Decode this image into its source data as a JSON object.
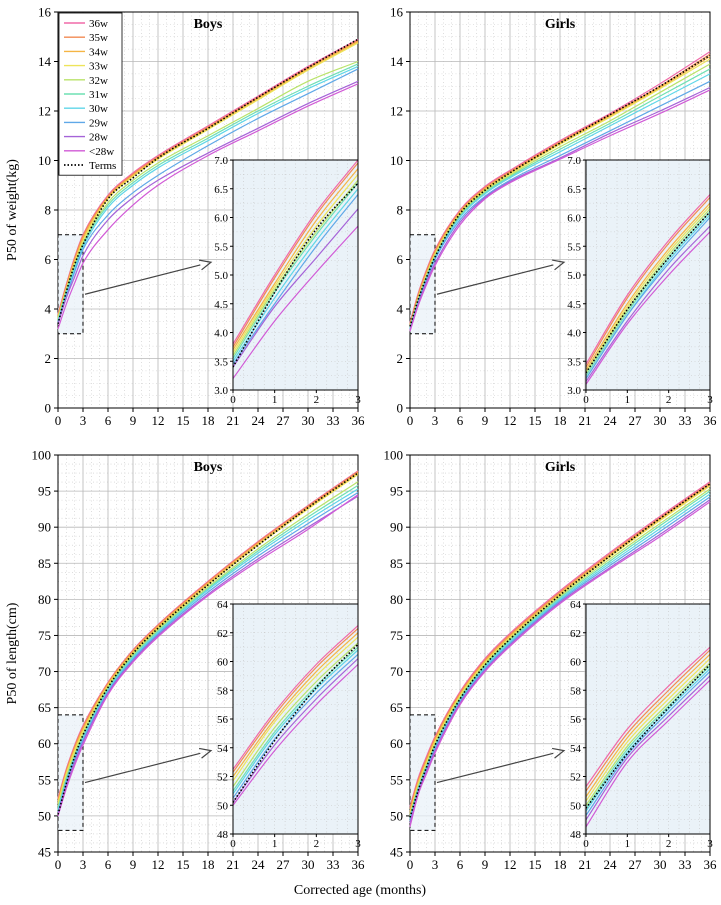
{
  "figure": {
    "xlabel": "Corrected age (months)"
  },
  "legend": {
    "entries": [
      {
        "label": "36w",
        "color": "#f06aa8",
        "style": "solid"
      },
      {
        "label": "35w",
        "color": "#f28a52",
        "style": "solid"
      },
      {
        "label": "34w",
        "color": "#f5b544",
        "style": "solid"
      },
      {
        "label": "33w",
        "color": "#eee45a",
        "style": "solid"
      },
      {
        "label": "32w",
        "color": "#b9e36a",
        "style": "solid"
      },
      {
        "label": "31w",
        "color": "#6fe0b4",
        "style": "solid"
      },
      {
        "label": "30w",
        "color": "#5fd6e8",
        "style": "solid"
      },
      {
        "label": "29w",
        "color": "#5fa8e8",
        "style": "solid"
      },
      {
        "label": "28w",
        "color": "#a563d8",
        "style": "solid"
      },
      {
        "label": "<28w",
        "color": "#d15ad6",
        "style": "solid"
      },
      {
        "label": "Terms",
        "color": "#000000",
        "style": "dotted"
      }
    ]
  },
  "chart_data": [
    {
      "type": "line",
      "title": "Boys",
      "ylabel": "P50 of weight(kg)",
      "xlabel": "Corrected age (months)",
      "xlim": [
        0,
        36
      ],
      "ylim": [
        0,
        16
      ],
      "xticks": [
        0,
        3,
        6,
        9,
        12,
        15,
        18,
        21,
        24,
        27,
        30,
        33,
        36
      ],
      "yticks": [
        0,
        2,
        4,
        6,
        8,
        10,
        12,
        14,
        16
      ],
      "highlight_box": {
        "x": [
          0,
          3
        ],
        "y": [
          3,
          7
        ]
      },
      "inset": {
        "xlim": [
          0,
          3
        ],
        "ylim": [
          3.0,
          7.0
        ],
        "xticks": [
          0,
          1,
          2,
          3
        ],
        "yticks": [
          "3.0",
          "3.5",
          "4.0",
          "4.5",
          "5.0",
          "5.5",
          "6.0",
          "6.5",
          "7.0"
        ]
      },
      "x": [
        0,
        1,
        2,
        3,
        6,
        9,
        12,
        18,
        24,
        30,
        36
      ],
      "series": [
        {
          "name": "36w",
          "values": [
            3.8,
            5.0,
            6.1,
            7.0,
            8.6,
            9.5,
            10.2,
            11.4,
            12.6,
            13.8,
            14.9
          ]
        },
        {
          "name": "35w",
          "values": [
            3.75,
            4.95,
            6.05,
            6.95,
            8.55,
            9.45,
            10.15,
            11.35,
            12.55,
            13.75,
            14.85
          ]
        },
        {
          "name": "34w",
          "values": [
            3.7,
            4.85,
            5.95,
            6.85,
            8.5,
            9.4,
            10.1,
            11.3,
            12.5,
            13.7,
            14.8
          ]
        },
        {
          "name": "33w",
          "values": [
            3.65,
            4.8,
            5.85,
            6.75,
            8.45,
            9.35,
            10.05,
            11.25,
            12.45,
            13.65,
            14.75
          ]
        },
        {
          "name": "32w",
          "values": [
            3.6,
            4.75,
            5.75,
            6.65,
            8.3,
            9.2,
            9.9,
            11.0,
            12.1,
            13.2,
            14.0
          ]
        },
        {
          "name": "31w",
          "values": [
            3.55,
            4.7,
            5.7,
            6.6,
            8.2,
            9.1,
            9.8,
            10.9,
            12.0,
            13.0,
            13.9
          ]
        },
        {
          "name": "30w",
          "values": [
            3.5,
            4.6,
            5.6,
            6.5,
            8.1,
            9.0,
            9.7,
            10.8,
            11.9,
            12.9,
            13.8
          ]
        },
        {
          "name": "29w",
          "values": [
            3.45,
            4.5,
            5.5,
            6.4,
            7.8,
            8.7,
            9.4,
            10.6,
            11.7,
            12.7,
            13.7
          ]
        },
        {
          "name": "28w",
          "values": [
            3.4,
            4.45,
            5.3,
            6.15,
            7.6,
            8.5,
            9.2,
            10.3,
            11.3,
            12.3,
            13.2
          ]
        },
        {
          "name": "<28w",
          "values": [
            3.2,
            4.2,
            5.05,
            5.85,
            7.2,
            8.2,
            9.0,
            10.2,
            11.2,
            12.2,
            13.1
          ]
        },
        {
          "name": "Terms",
          "values": [
            3.4,
            4.7,
            5.8,
            6.6,
            8.45,
            9.3,
            10.1,
            11.3,
            12.55,
            13.75,
            14.9
          ]
        }
      ]
    },
    {
      "type": "line",
      "title": "Girls",
      "ylabel": "",
      "xlabel": "Corrected age (months)",
      "xlim": [
        0,
        36
      ],
      "ylim": [
        0,
        16
      ],
      "xticks": [
        0,
        3,
        6,
        9,
        12,
        15,
        18,
        21,
        24,
        27,
        30,
        33,
        36
      ],
      "yticks": [
        0,
        2,
        4,
        6,
        8,
        10,
        12,
        14,
        16
      ],
      "highlight_box": {
        "x": [
          0,
          3
        ],
        "y": [
          3,
          7
        ]
      },
      "inset": {
        "xlim": [
          0,
          3
        ],
        "ylim": [
          3.0,
          7.0
        ],
        "xticks": [
          0,
          1,
          2,
          3
        ],
        "yticks": [
          "3.0",
          "3.5",
          "4.0",
          "4.5",
          "5.0",
          "5.5",
          "6.0",
          "6.5",
          "7.0"
        ]
      },
      "x": [
        0,
        1,
        2,
        3,
        6,
        9,
        12,
        18,
        24,
        30,
        36
      ],
      "series": [
        {
          "name": "36w",
          "values": [
            3.45,
            4.65,
            5.6,
            6.4,
            8.0,
            8.95,
            9.6,
            10.8,
            11.9,
            13.1,
            14.4
          ]
        },
        {
          "name": "35w",
          "values": [
            3.4,
            4.6,
            5.55,
            6.35,
            7.95,
            8.9,
            9.55,
            10.75,
            11.85,
            13.0,
            14.3
          ]
        },
        {
          "name": "34w",
          "values": [
            3.35,
            4.5,
            5.45,
            6.25,
            7.9,
            8.85,
            9.5,
            10.7,
            11.8,
            12.95,
            14.2
          ]
        },
        {
          "name": "33w",
          "values": [
            3.3,
            4.45,
            5.4,
            6.2,
            7.85,
            8.8,
            9.45,
            10.65,
            11.75,
            12.9,
            14.1
          ]
        },
        {
          "name": "32w",
          "values": [
            3.3,
            4.4,
            5.35,
            6.15,
            7.8,
            8.75,
            9.4,
            10.55,
            11.6,
            12.75,
            13.9
          ]
        },
        {
          "name": "31w",
          "values": [
            3.25,
            4.35,
            5.3,
            6.1,
            7.75,
            8.7,
            9.35,
            10.45,
            11.5,
            12.6,
            13.7
          ]
        },
        {
          "name": "30w",
          "values": [
            3.2,
            4.3,
            5.25,
            6.05,
            7.7,
            8.65,
            9.3,
            10.35,
            11.4,
            12.45,
            13.5
          ]
        },
        {
          "name": "29w",
          "values": [
            3.2,
            4.3,
            5.2,
            6.0,
            7.6,
            8.55,
            9.2,
            10.2,
            11.2,
            12.2,
            13.2
          ]
        },
        {
          "name": "28w",
          "values": [
            3.15,
            4.2,
            5.1,
            5.85,
            7.5,
            8.5,
            9.15,
            10.1,
            11.1,
            12.0,
            12.95
          ]
        },
        {
          "name": "<28w",
          "values": [
            3.1,
            4.15,
            5.0,
            5.75,
            7.4,
            8.45,
            9.1,
            10.05,
            11.0,
            11.9,
            12.85
          ]
        },
        {
          "name": "Terms",
          "values": [
            3.3,
            4.4,
            5.3,
            6.1,
            7.85,
            8.8,
            9.5,
            10.7,
            11.85,
            13.0,
            14.25
          ]
        }
      ]
    },
    {
      "type": "line",
      "title": "Boys",
      "ylabel": "P50 of length(cm)",
      "xlabel": "Corrected age (months)",
      "xlim": [
        0,
        36
      ],
      "ylim": [
        45,
        100
      ],
      "xticks": [
        0,
        3,
        6,
        9,
        12,
        15,
        18,
        21,
        24,
        27,
        30,
        33,
        36
      ],
      "yticks": [
        45,
        50,
        55,
        60,
        65,
        70,
        75,
        80,
        85,
        90,
        95,
        100
      ],
      "highlight_box": {
        "x": [
          0,
          3
        ],
        "y": [
          48,
          64
        ]
      },
      "inset": {
        "xlim": [
          0,
          3
        ],
        "ylim": [
          48,
          64
        ],
        "xticks": [
          0,
          1,
          2,
          3
        ],
        "yticks": [
          "48",
          "50",
          "52",
          "54",
          "56",
          "58",
          "60",
          "62",
          "64"
        ]
      },
      "x": [
        0,
        1,
        2,
        3,
        6,
        9,
        12,
        18,
        24,
        30,
        36
      ],
      "series": [
        {
          "name": "36w",
          "values": [
            52.5,
            56.5,
            59.8,
            62.5,
            68.5,
            73.0,
            76.5,
            82.5,
            88.0,
            93.0,
            97.8
          ]
        },
        {
          "name": "35w",
          "values": [
            52.3,
            56.3,
            59.6,
            62.3,
            68.4,
            72.9,
            76.4,
            82.4,
            87.9,
            92.9,
            97.7
          ]
        },
        {
          "name": "34w",
          "values": [
            52.0,
            56.0,
            59.3,
            62.0,
            68.2,
            72.7,
            76.2,
            82.2,
            87.7,
            92.7,
            97.5
          ]
        },
        {
          "name": "33w",
          "values": [
            51.7,
            55.8,
            59.0,
            61.7,
            68.0,
            72.5,
            76.0,
            82.0,
            87.5,
            92.5,
            97.3
          ]
        },
        {
          "name": "32w",
          "values": [
            51.3,
            55.4,
            58.6,
            61.3,
            67.8,
            72.3,
            75.8,
            81.7,
            87.0,
            91.8,
            96.3
          ]
        },
        {
          "name": "31w",
          "values": [
            51.0,
            55.1,
            58.3,
            61.0,
            67.6,
            72.1,
            75.6,
            81.5,
            86.7,
            91.4,
            95.8
          ]
        },
        {
          "name": "30w",
          "values": [
            50.8,
            54.9,
            58.1,
            60.8,
            67.4,
            71.9,
            75.4,
            81.3,
            86.4,
            91.0,
            95.3
          ]
        },
        {
          "name": "29w",
          "values": [
            50.5,
            54.6,
            57.8,
            60.5,
            67.2,
            71.7,
            75.2,
            81.0,
            86.0,
            90.5,
            94.8
          ]
        },
        {
          "name": "28w",
          "values": [
            50.2,
            54.2,
            57.4,
            60.2,
            67.0,
            71.5,
            75.0,
            80.7,
            85.6,
            90.0,
            94.3
          ]
        },
        {
          "name": "<28w",
          "values": [
            50.0,
            53.8,
            57.0,
            59.8,
            66.8,
            71.3,
            74.8,
            80.5,
            85.3,
            89.7,
            94.5
          ]
        },
        {
          "name": "Terms",
          "values": [
            50.2,
            54.5,
            58.2,
            61.2,
            67.8,
            72.5,
            76.0,
            82.0,
            87.5,
            92.7,
            97.5
          ]
        }
      ]
    },
    {
      "type": "line",
      "title": "Girls",
      "ylabel": "",
      "xlabel": "Corrected age (months)",
      "xlim": [
        0,
        36
      ],
      "ylim": [
        45,
        100
      ],
      "xticks": [
        0,
        3,
        6,
        9,
        12,
        15,
        18,
        21,
        24,
        27,
        30,
        33,
        36
      ],
      "yticks": [
        45,
        50,
        55,
        60,
        65,
        70,
        75,
        80,
        85,
        90,
        95,
        100
      ],
      "highlight_box": {
        "x": [
          0,
          3
        ],
        "y": [
          48,
          64
        ]
      },
      "inset": {
        "xlim": [
          0,
          3
        ],
        "ylim": [
          48,
          64
        ],
        "xticks": [
          0,
          1,
          2,
          3
        ],
        "yticks": [
          "48",
          "50",
          "52",
          "54",
          "56",
          "58",
          "60",
          "62",
          "64"
        ]
      },
      "x": [
        0,
        1,
        2,
        3,
        6,
        9,
        12,
        18,
        24,
        30,
        36
      ],
      "series": [
        {
          "name": "36w",
          "values": [
            51.3,
            55.3,
            58.3,
            61.0,
            67.2,
            71.8,
            75.3,
            81.2,
            86.5,
            91.5,
            96.3
          ]
        },
        {
          "name": "35w",
          "values": [
            51.0,
            55.0,
            58.0,
            60.8,
            67.0,
            71.6,
            75.1,
            81.0,
            86.3,
            91.3,
            96.1
          ]
        },
        {
          "name": "34w",
          "values": [
            50.6,
            54.7,
            57.7,
            60.5,
            66.8,
            71.4,
            74.9,
            80.8,
            86.1,
            91.1,
            95.9
          ]
        },
        {
          "name": "33w",
          "values": [
            50.3,
            54.4,
            57.4,
            60.2,
            66.6,
            71.2,
            74.7,
            80.6,
            85.9,
            90.9,
            95.7
          ]
        },
        {
          "name": "32w",
          "values": [
            50.0,
            54.1,
            57.1,
            59.9,
            66.4,
            71.0,
            74.5,
            80.4,
            85.6,
            90.5,
            95.3
          ]
        },
        {
          "name": "31w",
          "values": [
            49.8,
            53.9,
            56.9,
            59.7,
            66.2,
            70.8,
            74.3,
            80.2,
            85.3,
            90.2,
            95.0
          ]
        },
        {
          "name": "30w",
          "values": [
            49.6,
            53.7,
            56.7,
            59.5,
            66.0,
            70.6,
            74.1,
            80.0,
            85.0,
            89.8,
            94.6
          ]
        },
        {
          "name": "29w",
          "values": [
            49.3,
            53.5,
            56.5,
            59.3,
            65.8,
            70.4,
            73.9,
            79.8,
            84.7,
            89.4,
            94.2
          ]
        },
        {
          "name": "28w",
          "values": [
            49.0,
            53.3,
            56.2,
            59.0,
            65.6,
            70.2,
            73.7,
            79.6,
            84.4,
            89.0,
            93.8
          ]
        },
        {
          "name": "<28w",
          "values": [
            48.5,
            53.0,
            55.9,
            58.7,
            65.4,
            70.0,
            73.5,
            79.4,
            84.2,
            88.7,
            93.5
          ]
        },
        {
          "name": "Terms",
          "values": [
            49.8,
            53.6,
            56.8,
            59.8,
            66.2,
            70.9,
            74.5,
            80.6,
            86.0,
            91.2,
            96.0
          ]
        }
      ]
    }
  ]
}
